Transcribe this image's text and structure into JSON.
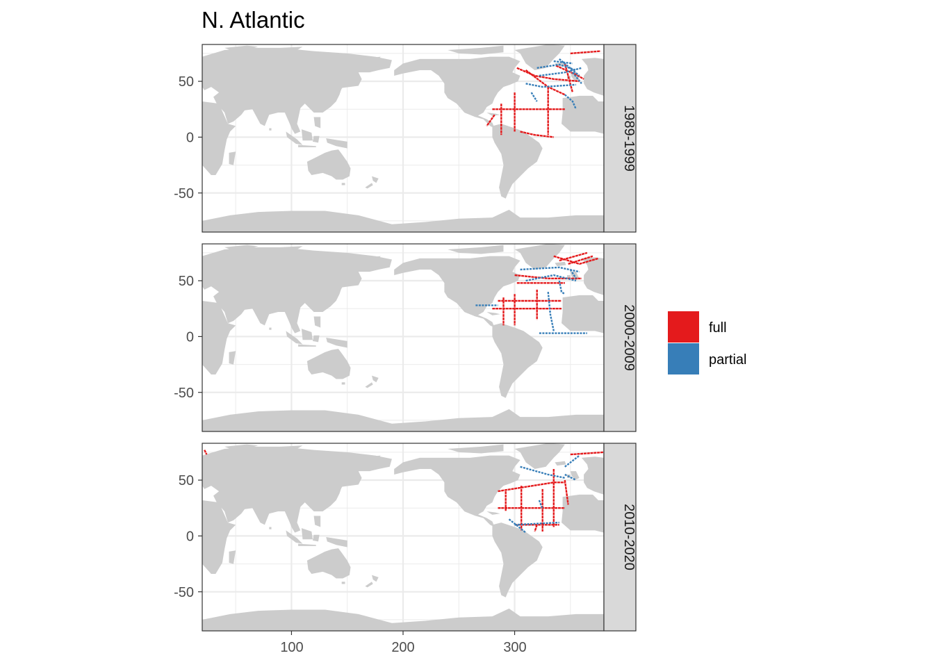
{
  "title": "N. Atlantic",
  "colors": {
    "land": "#cccccc",
    "grid": "#ebebeb",
    "panel_border": "#333333",
    "strip_fill": "#d9d9d9",
    "full": "#e41a1c",
    "partial": "#377eb8"
  },
  "x_axis": {
    "ticks": [
      "100",
      "200",
      "300"
    ],
    "range": [
      20,
      380
    ]
  },
  "y_axis": {
    "ticks": [
      "50",
      "0",
      "-50"
    ],
    "range": [
      -85,
      83
    ]
  },
  "panels": [
    {
      "label": "1989-1999"
    },
    {
      "label": "2000-2009"
    },
    {
      "label": "2010-2020"
    }
  ],
  "legend": {
    "position": "right",
    "items": [
      {
        "label": "full",
        "color": "#e41a1c"
      },
      {
        "label": "partial",
        "color": "#377eb8"
      }
    ]
  },
  "chart_data": {
    "type": "map",
    "facet": "decade",
    "projection": "longitude 20-380, latitude -85 to 83",
    "categories": [
      "full",
      "partial"
    ],
    "gridlines": true,
    "panels": [
      {
        "label": "1989-1999",
        "tracks": [
          {
            "cat": "full",
            "pts": [
              [
                280,
                25
              ],
              [
                345,
                25
              ]
            ]
          },
          {
            "cat": "full",
            "pts": [
              [
                288,
                30
              ],
              [
                288,
                2
              ]
            ]
          },
          {
            "cat": "full",
            "pts": [
              [
                300,
                40
              ],
              [
                300,
                5
              ]
            ]
          },
          {
            "cat": "full",
            "pts": [
              [
                330,
                45
              ],
              [
                330,
                2
              ]
            ]
          },
          {
            "cat": "full",
            "pts": [
              [
                310,
                60
              ],
              [
                330,
                45
              ],
              [
                345,
                38
              ]
            ]
          },
          {
            "cat": "full",
            "pts": [
              [
                345,
                66
              ],
              [
                352,
                40
              ]
            ]
          },
          {
            "cat": "full",
            "pts": [
              [
                337,
                64
              ],
              [
                355,
                56
              ],
              [
                362,
                52
              ]
            ]
          },
          {
            "cat": "full",
            "pts": [
              [
                302,
                62
              ],
              [
                318,
                55
              ],
              [
                335,
                52
              ],
              [
                358,
                50
              ]
            ]
          },
          {
            "cat": "full",
            "pts": [
              [
                350,
                75
              ],
              [
                377,
                77
              ]
            ]
          },
          {
            "cat": "full",
            "pts": [
              [
                305,
                5
              ],
              [
                318,
                2
              ],
              [
                335,
                0
              ]
            ]
          },
          {
            "cat": "full",
            "pts": [
              [
                282,
                20
              ],
              [
                275,
                10
              ]
            ]
          },
          {
            "cat": "partial",
            "pts": [
              [
                320,
                62
              ],
              [
                340,
                65
              ],
              [
                355,
                60
              ]
            ]
          },
          {
            "cat": "partial",
            "pts": [
              [
                322,
                55
              ],
              [
                345,
                58
              ],
              [
                360,
                62
              ]
            ]
          },
          {
            "cat": "partial",
            "pts": [
              [
                310,
                48
              ],
              [
                325,
                45
              ],
              [
                355,
                47
              ]
            ]
          },
          {
            "cat": "partial",
            "pts": [
              [
                340,
                70
              ],
              [
                352,
                60
              ],
              [
                358,
                55
              ]
            ]
          },
          {
            "cat": "partial",
            "pts": [
              [
                345,
                38
              ],
              [
                352,
                32
              ],
              [
                355,
                25
              ]
            ]
          },
          {
            "cat": "partial",
            "pts": [
              [
                315,
                40
              ],
              [
                320,
                32
              ]
            ]
          },
          {
            "cat": "partial",
            "pts": [
              [
                335,
                68
              ],
              [
                352,
                66
              ]
            ]
          },
          {
            "cat": "partial",
            "pts": [
              [
                352,
                58
              ],
              [
                360,
                48
              ]
            ]
          }
        ]
      },
      {
        "label": "2000-2009",
        "tracks": [
          {
            "cat": "full",
            "pts": [
              [
                280,
                25
              ],
              [
                342,
                25
              ]
            ]
          },
          {
            "cat": "full",
            "pts": [
              [
                285,
                32
              ],
              [
                342,
                32
              ]
            ]
          },
          {
            "cat": "full",
            "pts": [
              [
                300,
                38
              ],
              [
                300,
                10
              ]
            ]
          },
          {
            "cat": "full",
            "pts": [
              [
                290,
                35
              ],
              [
                290,
                10
              ]
            ]
          },
          {
            "cat": "full",
            "pts": [
              [
                320,
                42
              ],
              [
                320,
                15
              ]
            ]
          },
          {
            "cat": "full",
            "pts": [
              [
                300,
                55
              ],
              [
                330,
                52
              ],
              [
                360,
                52
              ]
            ]
          },
          {
            "cat": "full",
            "pts": [
              [
                335,
                72
              ],
              [
                358,
                65
              ],
              [
                375,
                70
              ]
            ]
          },
          {
            "cat": "full",
            "pts": [
              [
                340,
                68
              ],
              [
                365,
                75
              ]
            ]
          },
          {
            "cat": "full",
            "pts": [
              [
                302,
                48
              ],
              [
                345,
                48
              ]
            ]
          },
          {
            "cat": "full",
            "pts": [
              [
                348,
                65
              ],
              [
                370,
                72
              ]
            ]
          },
          {
            "cat": "partial",
            "pts": [
              [
                265,
                28
              ],
              [
                285,
                28
              ]
            ]
          },
          {
            "cat": "partial",
            "pts": [
              [
                305,
                60
              ],
              [
                340,
                62
              ],
              [
                358,
                58
              ]
            ]
          },
          {
            "cat": "partial",
            "pts": [
              [
                310,
                50
              ],
              [
                335,
                55
              ],
              [
                355,
                50
              ]
            ]
          },
          {
            "cat": "partial",
            "pts": [
              [
                330,
                40
              ],
              [
                332,
                20
              ],
              [
                335,
                5
              ]
            ]
          },
          {
            "cat": "partial",
            "pts": [
              [
                322,
                3
              ],
              [
                365,
                3
              ]
            ]
          },
          {
            "cat": "partial",
            "pts": [
              [
                340,
                50
              ],
              [
                342,
                40
              ],
              [
                345,
                38
              ]
            ]
          },
          {
            "cat": "partial",
            "pts": [
              [
                350,
                60
              ],
              [
                355,
                52
              ]
            ]
          }
        ]
      },
      {
        "label": "2010-2020",
        "tracks": [
          {
            "cat": "full",
            "pts": [
              [
                285,
                25
              ],
              [
                345,
                25
              ]
            ]
          },
          {
            "cat": "full",
            "pts": [
              [
                300,
                10
              ],
              [
                340,
                10
              ]
            ]
          },
          {
            "cat": "full",
            "pts": [
              [
                285,
                40
              ],
              [
                335,
                48
              ],
              [
                345,
                48
              ]
            ]
          },
          {
            "cat": "full",
            "pts": [
              [
                292,
                40
              ],
              [
                292,
                22
              ]
            ]
          },
          {
            "cat": "full",
            "pts": [
              [
                306,
                45
              ],
              [
                306,
                5
              ]
            ]
          },
          {
            "cat": "full",
            "pts": [
              [
                325,
                42
              ],
              [
                325,
                4
              ]
            ]
          },
          {
            "cat": "full",
            "pts": [
              [
                335,
                60
              ],
              [
                335,
                8
              ]
            ]
          },
          {
            "cat": "full",
            "pts": [
              [
                345,
                50
              ],
              [
                348,
                28
              ]
            ]
          },
          {
            "cat": "full",
            "pts": [
              [
                350,
                73
              ],
              [
                380,
                75
              ]
            ]
          },
          {
            "cat": "full",
            "pts": [
              [
                320,
                10
              ],
              [
                318,
                4
              ]
            ]
          },
          {
            "cat": "full",
            "pts": [
              [
                22,
                77
              ],
              [
                24,
                73
              ]
            ]
          },
          {
            "cat": "partial",
            "pts": [
              [
                305,
                62
              ],
              [
                330,
                55
              ],
              [
                345,
                52
              ]
            ]
          },
          {
            "cat": "partial",
            "pts": [
              [
                345,
                62
              ],
              [
                358,
                72
              ]
            ]
          },
          {
            "cat": "partial",
            "pts": [
              [
                300,
                10
              ],
              [
                340,
                12
              ]
            ]
          },
          {
            "cat": "partial",
            "pts": [
              [
                295,
                15
              ],
              [
                310,
                3
              ]
            ]
          },
          {
            "cat": "partial",
            "pts": [
              [
                322,
                32
              ],
              [
                325,
                24
              ]
            ]
          },
          {
            "cat": "partial",
            "pts": [
              [
                345,
                55
              ],
              [
                355,
                50
              ]
            ]
          }
        ]
      }
    ]
  }
}
